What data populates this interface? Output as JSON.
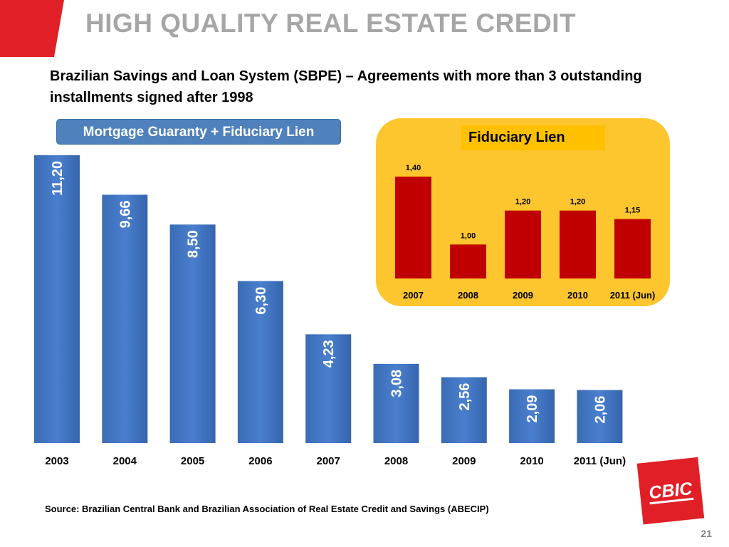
{
  "title": "HIGH QUALITY REAL ESTATE CREDIT",
  "subtitle": "Brazilian Savings and Loan System (SBPE) – Agreements with more than 3 outstanding installments signed after 1998",
  "source": "Source: Brazilian Central Bank and Brazilian Association of Real Estate Credit and Savings (ABECIP)",
  "page_number": "21",
  "logo_text": "CBIC",
  "colors": {
    "title": "#a6a6a6",
    "blue_bar": "#4f81bd",
    "red_bar": "#c00000",
    "inset_bg": "#fdc62f",
    "logo_red": "#e01f26"
  },
  "chart_data": [
    {
      "type": "bar",
      "title": "Mortgage Guaranty + Fiduciary Lien",
      "categories": [
        "2003",
        "2004",
        "2005",
        "2006",
        "2007",
        "2008",
        "2009",
        "2010",
        "2011 (Jun)"
      ],
      "values": [
        11.2,
        9.66,
        8.5,
        6.3,
        4.23,
        3.08,
        2.56,
        2.09,
        2.06
      ],
      "labels": [
        "11,20",
        "9,66",
        "8,50",
        "6,30",
        "4,23",
        "3,08",
        "2,56",
        "2,09",
        "2,06"
      ],
      "ylim": [
        0,
        11.5
      ],
      "grid": false,
      "color": "#4f81bd"
    },
    {
      "type": "bar",
      "title": "Fiduciary Lien",
      "categories": [
        "2007",
        "2008",
        "2009",
        "2010",
        "2011 (Jun)"
      ],
      "values": [
        1.4,
        1.0,
        1.2,
        1.2,
        1.15
      ],
      "labels": [
        "1,40",
        "1,00",
        "1,20",
        "1,20",
        "1,15"
      ],
      "ylim": [
        0.8,
        1.45
      ],
      "grid": false,
      "color": "#c00000"
    }
  ]
}
